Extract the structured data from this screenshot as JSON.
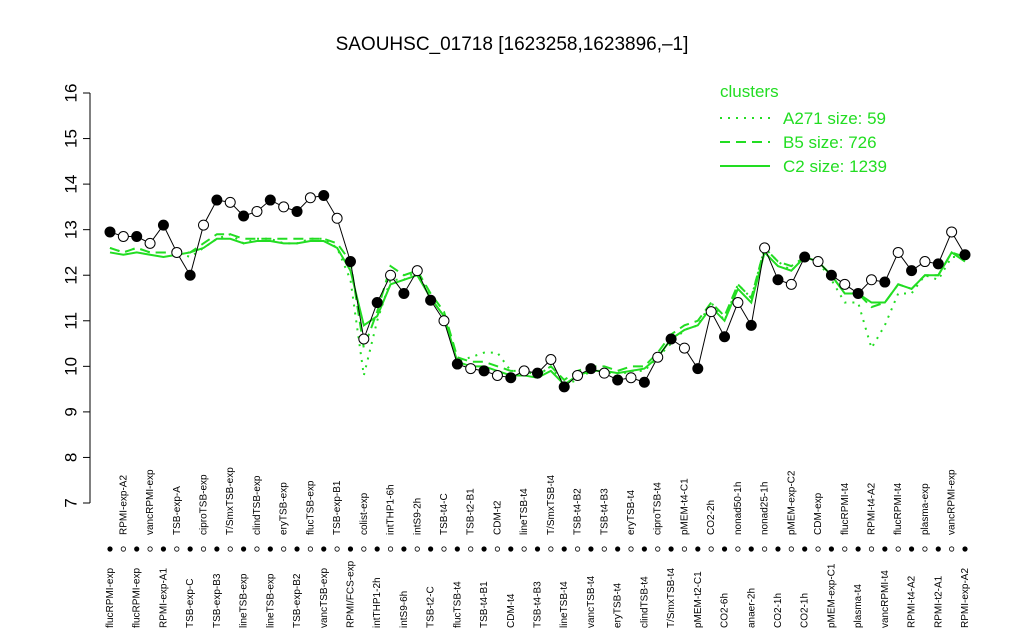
{
  "chart_data": {
    "type": "line",
    "title": "SAOUHSC_01718 [1623258,1623896,–1]",
    "legend_title": "clusters",
    "legend_position": "top-right",
    "ylim": [
      7,
      16
    ],
    "yticks": [
      7,
      8,
      9,
      10,
      11,
      12,
      13,
      14,
      15,
      16
    ],
    "categories": [
      "flucRPMI-exp",
      "RPMI-exp-A2",
      "flucRPMI-exp",
      "vancRPMI-exp",
      "RPMI-exp-A1",
      "TSB-exp-A",
      "TSB-exp-C",
      "ciproTSB-exp",
      "TSB-exp-B3",
      "T/SmxTSB-exp",
      "lineTSB-exp",
      "clindTSB-exp",
      "lineTSB-exp",
      "eryTSB-exp",
      "TSB-exp-B2",
      "flucTSB-exp",
      "vancTSB-exp",
      "TSB-exp-B1",
      "RPMI/FCS-exp",
      "colist-exp",
      "intTHP1-2h",
      "intTHP1-6h",
      "intS9-6h",
      "intS9-2h",
      "TSB-t2-C",
      "TSB-t4-C",
      "flucTSB-t4",
      "TSB-t2-B1",
      "TSB-t4-B1",
      "CDM-t2",
      "CDM-t4",
      "lineTSB-t4",
      "TSB-t4-B3",
      "T/SmxTSB-t4",
      "lineTSB-t4",
      "TSB-t4-B2",
      "vancTSB-t4",
      "TSB-t4-B3",
      "eryTSB-t4",
      "eryTSB-t4",
      "clindTSB-t4",
      "ciproTSB-t4",
      "T/SmxTSB-t4",
      "pMEM-t4-C1",
      "pMEM-t2-C1",
      "CO2-2h",
      "CO2-6h",
      "nonad50-1h",
      "anaer-2h",
      "nonad25-1h",
      "CO2-1h",
      "pMEM-exp-C2",
      "CO2-1h",
      "CDM-exp",
      "pMEM-exp-C1",
      "flucRPMI-t4",
      "plasma-t4",
      "RPMI-t4-A2",
      "vancRPMI-t4",
      "flucRPMI-t4",
      "RPMI-t4-A2",
      "plasma-exp",
      "RPMI-t2-A1",
      "vancRPMI-exp",
      "RPMI-exp-A2"
    ],
    "values": [
      12.95,
      12.85,
      12.85,
      12.7,
      13.1,
      12.5,
      12.0,
      13.1,
      13.65,
      13.6,
      13.3,
      13.4,
      13.65,
      13.5,
      13.4,
      13.7,
      13.75,
      13.25,
      12.3,
      10.6,
      11.4,
      12.0,
      11.6,
      12.1,
      11.45,
      11.0,
      10.05,
      9.95,
      9.9,
      9.8,
      9.75,
      9.9,
      9.85,
      10.15,
      9.55,
      9.8,
      9.95,
      9.85,
      9.7,
      9.75,
      9.65,
      10.2,
      10.6,
      10.4,
      9.95,
      11.2,
      10.65,
      11.4,
      10.9,
      12.6,
      11.9,
      11.8,
      12.4,
      12.3,
      12.0,
      11.8,
      11.6,
      11.9,
      11.85,
      12.5,
      12.1,
      12.3,
      12.25,
      12.95,
      12.45
    ],
    "line_color": "#000000",
    "series": [
      {
        "name": "A271 size: 59",
        "color": "#22dd22",
        "dash": "dotted",
        "values": [
          12.6,
          12.5,
          12.6,
          12.5,
          12.5,
          12.5,
          12.4,
          12.6,
          12.8,
          12.9,
          12.7,
          12.8,
          12.8,
          12.7,
          12.7,
          12.8,
          12.8,
          12.6,
          11.9,
          9.8,
          11.0,
          11.9,
          11.9,
          12.1,
          11.5,
          11.1,
          10.1,
          10.2,
          10.3,
          10.3,
          9.9,
          9.9,
          9.8,
          10.0,
          9.6,
          9.7,
          9.9,
          9.9,
          9.8,
          9.9,
          9.9,
          10.2,
          10.5,
          10.8,
          10.9,
          11.4,
          11.0,
          11.8,
          11.5,
          12.6,
          12.3,
          12.1,
          12.4,
          12.3,
          11.9,
          11.4,
          11.4,
          10.4,
          10.9,
          11.6,
          11.6,
          12.0,
          11.9,
          12.4,
          12.4
        ]
      },
      {
        "name": "B5 size: 726",
        "color": "#22dd22",
        "dash": "dashed",
        "values": [
          12.6,
          12.5,
          12.6,
          12.5,
          12.5,
          12.5,
          12.5,
          12.7,
          12.9,
          12.9,
          12.8,
          12.8,
          12.8,
          12.8,
          12.8,
          12.8,
          12.8,
          12.7,
          12.3,
          10.4,
          11.2,
          12.2,
          12.0,
          12.1,
          11.6,
          11.2,
          10.2,
          10.1,
          10.1,
          10.0,
          9.9,
          9.9,
          9.8,
          10.0,
          9.7,
          9.9,
          10.0,
          10.0,
          9.9,
          10.0,
          10.0,
          10.3,
          10.7,
          10.9,
          11.0,
          11.4,
          11.1,
          11.8,
          11.5,
          12.6,
          12.3,
          12.2,
          12.4,
          12.3,
          12.0,
          11.6,
          11.6,
          11.3,
          11.4,
          11.8,
          11.7,
          12.0,
          12.0,
          12.5,
          12.4
        ]
      },
      {
        "name": "C2 size: 1239",
        "color": "#22dd22",
        "dash": "solid",
        "values": [
          12.5,
          12.45,
          12.5,
          12.45,
          12.4,
          12.45,
          12.5,
          12.6,
          12.8,
          12.8,
          12.7,
          12.75,
          12.75,
          12.7,
          12.7,
          12.75,
          12.75,
          12.6,
          12.1,
          10.9,
          11.1,
          11.8,
          11.9,
          12.0,
          11.5,
          11.1,
          10.1,
          10.0,
          10.0,
          9.9,
          9.8,
          9.8,
          9.75,
          9.9,
          9.6,
          9.8,
          9.9,
          9.9,
          9.85,
          9.9,
          9.95,
          10.2,
          10.6,
          10.8,
          10.9,
          11.3,
          11.0,
          11.7,
          11.4,
          12.5,
          12.2,
          12.1,
          12.4,
          12.3,
          12.0,
          11.6,
          11.6,
          11.4,
          11.4,
          11.8,
          11.7,
          12.0,
          12.0,
          12.5,
          12.3
        ]
      }
    ]
  }
}
